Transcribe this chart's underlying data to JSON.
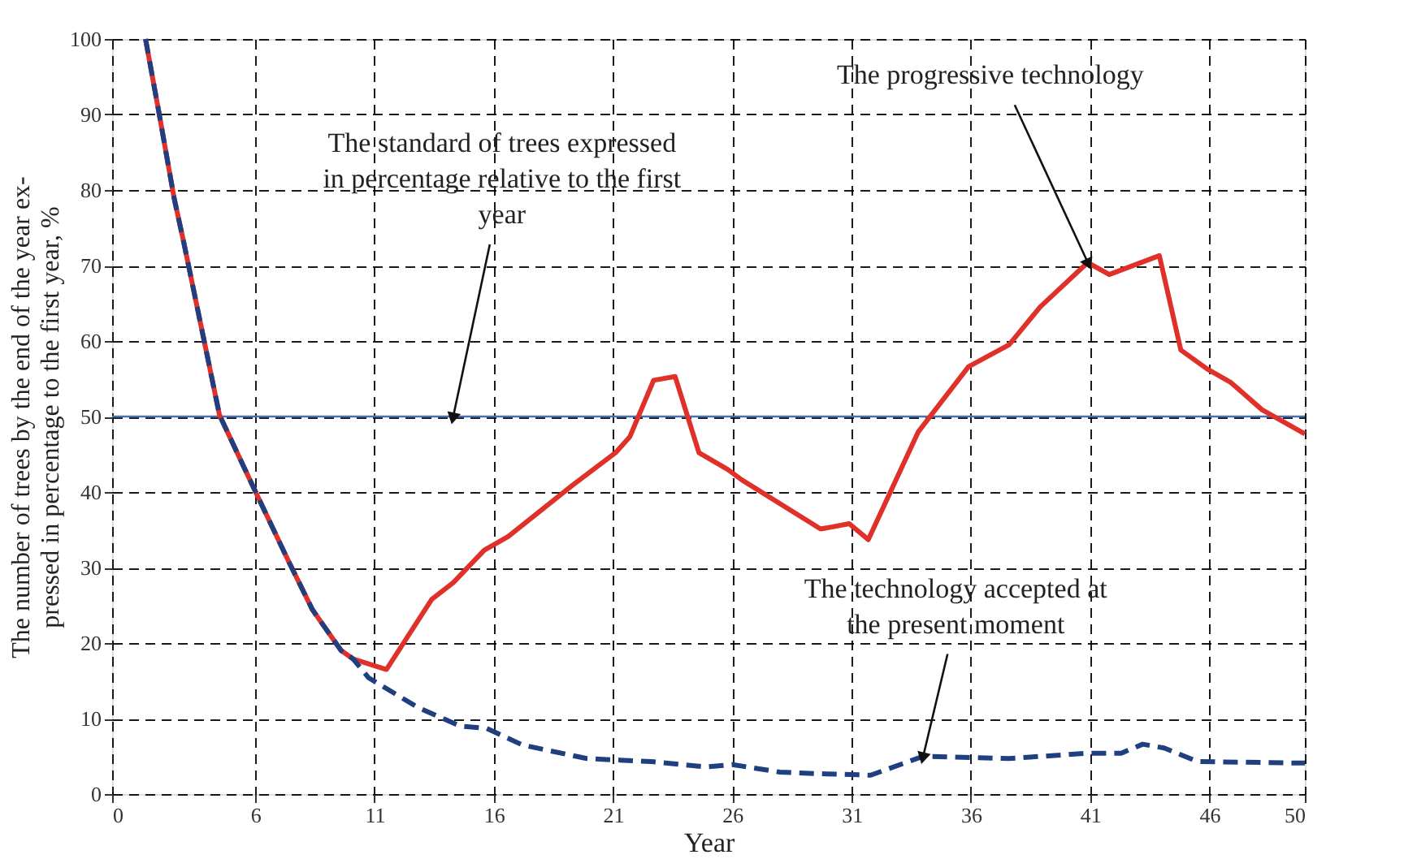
{
  "chart_data": {
    "type": "line",
    "xlabel": "Year",
    "ylabel": "The number of trees by the end of the year ex-\npressed in percentage to the first year, %",
    "xlim": [
      0,
      50
    ],
    "xticks": [
      0,
      6,
      11,
      16,
      21,
      26,
      31,
      36,
      41,
      46,
      50
    ],
    "ylim": [
      0,
      100
    ],
    "yticks": [
      0,
      10,
      20,
      30,
      40,
      50,
      60,
      70,
      80,
      90,
      100
    ],
    "grid": true,
    "series": [
      {
        "color": "#e0302a",
        "line_style": "solid",
        "x": [
          1.4,
          2.0,
          2.6,
          3.0,
          3.8,
          4.5,
          6.0,
          7.4,
          8.4,
          9.6,
          10.1,
          11.5,
          13.4,
          14.3,
          15.6,
          16.6,
          19.3,
          21.1,
          21.7,
          22.7,
          23.6,
          24.6,
          25.8,
          26.4,
          29.7,
          30.9,
          31.7,
          33.8,
          35.9,
          37.6,
          38.9,
          40.9,
          41.8,
          43.9,
          44.8,
          45.9,
          46.9,
          48.2,
          50
        ],
        "values": [
          100,
          89.6,
          78.9,
          73.1,
          60.9,
          50.2,
          40.1,
          30.8,
          24.4,
          19.0,
          17.9,
          16.5,
          25.8,
          28.0,
          32.3,
          34.1,
          40.9,
          45.2,
          47.3,
          54.8,
          55.3,
          45.2,
          43.0,
          41.6,
          35.1,
          35.8,
          33.7,
          48.0,
          56.6,
          59.5,
          64.5,
          70.4,
          68.8,
          71.3,
          58.8,
          56.3,
          54.5,
          50.9,
          47.7
        ]
      },
      {
        "color": "#1f3f80",
        "line_style": "dashed",
        "x": [
          1.4,
          2.0,
          2.6,
          3.0,
          3.8,
          4.5,
          6.0,
          7.4,
          8.4,
          9.6,
          10.1,
          10.75,
          12.8,
          14.6,
          15.7,
          17.2,
          19.9,
          22.6,
          24.9,
          26.0,
          28.0,
          29.6,
          31.8,
          34.0,
          37.6,
          40.8,
          42.3,
          43.2,
          44.1,
          45.5,
          50
        ],
        "values": [
          100,
          89.6,
          78.9,
          73.1,
          60.9,
          50.2,
          40.1,
          30.8,
          24.4,
          19.0,
          17.9,
          15.4,
          11.5,
          9.0,
          8.7,
          6.5,
          4.7,
          4.3,
          3.6,
          3.9,
          2.9,
          2.7,
          2.5,
          5.0,
          4.7,
          5.4,
          5.4,
          6.6,
          6.1,
          4.3,
          4.1
        ]
      }
    ],
    "ref_lines": [
      {
        "axis": "y",
        "value": 50,
        "color": "#4a6fb0",
        "line_style": "solid"
      }
    ],
    "annotations": [
      {
        "text": "The standard of trees expressed\nin percentage relative to the first\nyear",
        "x": 14.3,
        "y": 50
      },
      {
        "text": "The progressive technology",
        "x": 40.9,
        "y": 70.4
      },
      {
        "text": "The technology accepted at\nthe present moment",
        "x": 34.0,
        "y": 5.0
      }
    ]
  }
}
